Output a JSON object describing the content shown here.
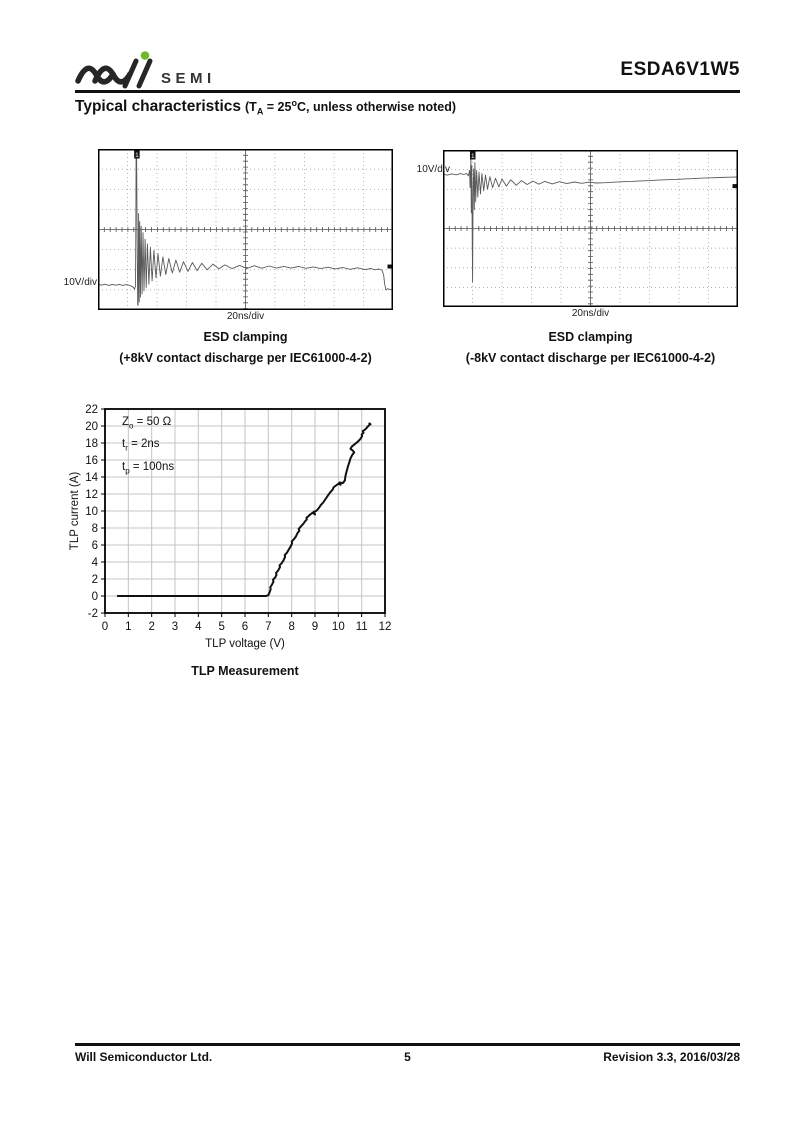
{
  "header": {
    "brand_mark": "Will",
    "brand_text": "SEMI",
    "part_number": "ESDA6V1W5"
  },
  "section_title": {
    "main": "Typical characteristics",
    "cond_pre": "(T",
    "cond_sub": "A",
    "cond_mid": " = 25",
    "cond_sup": "o",
    "cond_post": "C, unless otherwise noted)"
  },
  "figures": {
    "esd_pos": {
      "y_scale": "10V/div",
      "x_scale": "20ns/div",
      "channel_marker": "1",
      "caption_title": "ESD clamping",
      "caption_detail": "(+8kV contact discharge per IEC61000-4-2)"
    },
    "esd_neg": {
      "y_scale": "10V/div",
      "x_scale": "20ns/div",
      "channel_marker": "1",
      "caption_title": "ESD clamping",
      "caption_detail": "(-8kV contact discharge per IEC61000-4-2)"
    },
    "tlp": {
      "ylabel": "TLP current (A)",
      "xlabel": "TLP voltage (V)",
      "caption": "TLP Measurement",
      "annotations": [
        {
          "base": "Z",
          "sub": "o",
          "rest": " = 50 Ω"
        },
        {
          "base": "t",
          "sub": "r",
          "rest": " = 2ns"
        },
        {
          "base": "t",
          "sub": "p",
          "rest": " = 100ns"
        }
      ]
    }
  },
  "chart_data": [
    {
      "id": "esd_pos",
      "type": "line",
      "title": "ESD clamping (+8kV contact discharge per IEC61000-4-2)",
      "x_units": "20ns/div",
      "y_units": "10V/div",
      "grid_divisions": {
        "x": 10,
        "y": 8
      },
      "channel_label": "1",
      "peak_marker_x_pct": 13.1,
      "edge_marker_y_pct": 73,
      "clipped_peak": true,
      "trace_pct": [
        [
          0,
          84
        ],
        [
          1.2,
          84.6
        ],
        [
          2.4,
          84
        ],
        [
          3.6,
          84.7
        ],
        [
          4.8,
          84.1
        ],
        [
          6,
          84.6
        ],
        [
          7.2,
          84.1
        ],
        [
          8.4,
          84.7
        ],
        [
          9.6,
          84.2
        ],
        [
          10.8,
          84.8
        ],
        [
          11.8,
          85.6
        ],
        [
          12.4,
          87
        ],
        [
          12.7,
          85
        ],
        [
          12.8,
          55
        ],
        [
          12.9,
          3
        ],
        [
          13.1,
          2
        ],
        [
          13.3,
          60
        ],
        [
          13.45,
          97
        ],
        [
          13.6,
          97
        ],
        [
          13.75,
          40
        ],
        [
          13.95,
          95
        ],
        [
          14.15,
          45
        ],
        [
          14.4,
          92
        ],
        [
          14.65,
          48
        ],
        [
          14.95,
          90
        ],
        [
          15.25,
          52
        ],
        [
          15.6,
          88
        ],
        [
          15.95,
          56
        ],
        [
          16.35,
          86
        ],
        [
          16.75,
          59
        ],
        [
          17.25,
          84
        ],
        [
          17.75,
          61
        ],
        [
          18.35,
          82
        ],
        [
          18.95,
          63
        ],
        [
          19.65,
          80
        ],
        [
          20.35,
          65
        ],
        [
          21.15,
          79
        ],
        [
          22,
          67
        ],
        [
          23,
          78
        ],
        [
          24,
          68
        ],
        [
          25.2,
          77
        ],
        [
          26.4,
          69
        ],
        [
          27.7,
          76.5
        ],
        [
          29,
          70
        ],
        [
          30.5,
          76
        ],
        [
          32,
          70.5
        ],
        [
          33.6,
          75.5
        ],
        [
          35.2,
          71
        ],
        [
          37,
          75
        ],
        [
          39,
          71.5
        ],
        [
          41,
          74.5
        ],
        [
          43,
          72
        ],
        [
          45.5,
          74.3
        ],
        [
          48,
          72.3
        ],
        [
          50.5,
          74.2
        ],
        [
          53,
          72.5
        ],
        [
          55.5,
          74.1
        ],
        [
          58,
          72.7
        ],
        [
          60.5,
          74
        ],
        [
          63,
          72.9
        ],
        [
          65.5,
          74
        ],
        [
          68,
          73
        ],
        [
          70.5,
          74.1
        ],
        [
          73,
          73.2
        ],
        [
          75.5,
          74.3
        ],
        [
          78,
          73.4
        ],
        [
          80.5,
          74.5
        ],
        [
          83,
          73.6
        ],
        [
          85.5,
          74.7
        ],
        [
          88,
          73.8
        ],
        [
          90.5,
          74.9
        ],
        [
          92.5,
          74.2
        ],
        [
          94,
          75
        ],
        [
          95.3,
          74.5
        ],
        [
          96.2,
          75.2
        ],
        [
          96.8,
          78
        ],
        [
          97.2,
          84
        ],
        [
          97.6,
          87.5
        ],
        [
          98.2,
          86.8
        ],
        [
          99,
          87.3
        ],
        [
          100,
          87.5
        ]
      ]
    },
    {
      "id": "esd_neg",
      "type": "line",
      "title": "ESD clamping (-8kV contact discharge per IEC61000-4-2)",
      "x_units": "20ns/div",
      "y_units": "10V/div",
      "grid_divisions": {
        "x": 10,
        "y": 8
      },
      "channel_label": "1",
      "peak_marker_x_pct": 10,
      "edge_marker_y_pct": 23,
      "clipped_peak": false,
      "trace_pct": [
        [
          0,
          15.5
        ],
        [
          1.5,
          16
        ],
        [
          3,
          15.2
        ],
        [
          4.5,
          15.8
        ],
        [
          6,
          15
        ],
        [
          7,
          15.6
        ],
        [
          8,
          15
        ],
        [
          8.6,
          16.5
        ],
        [
          9,
          13
        ],
        [
          9.2,
          24
        ],
        [
          9.45,
          6
        ],
        [
          9.6,
          40
        ],
        [
          9.75,
          10
        ],
        [
          9.9,
          55
        ],
        [
          10.05,
          84
        ],
        [
          10.2,
          25
        ],
        [
          10.4,
          12
        ],
        [
          10.6,
          38
        ],
        [
          10.8,
          8
        ],
        [
          11.1,
          33
        ],
        [
          11.4,
          13
        ],
        [
          11.8,
          30
        ],
        [
          12.2,
          14
        ],
        [
          12.7,
          28
        ],
        [
          13.2,
          15
        ],
        [
          13.8,
          26
        ],
        [
          14.4,
          16
        ],
        [
          15.1,
          25
        ],
        [
          15.9,
          17
        ],
        [
          16.8,
          24
        ],
        [
          17.8,
          18
        ],
        [
          18.9,
          23.5
        ],
        [
          20,
          18.5
        ],
        [
          21.5,
          23
        ],
        [
          23,
          19
        ],
        [
          24.8,
          22.5
        ],
        [
          26.6,
          19.5
        ],
        [
          28.5,
          22
        ],
        [
          30.5,
          19.8
        ],
        [
          32.5,
          21.8
        ],
        [
          34.5,
          20
        ],
        [
          37,
          21.6
        ],
        [
          39.5,
          20.2
        ],
        [
          42,
          21.4
        ],
        [
          44.5,
          20.4
        ],
        [
          47,
          21.2
        ],
        [
          49.5,
          20.5
        ],
        [
          52,
          21
        ],
        [
          55,
          20.8
        ],
        [
          58,
          20.5
        ],
        [
          61,
          20.2
        ],
        [
          64,
          20
        ],
        [
          67,
          19.7
        ],
        [
          70,
          19.5
        ],
        [
          73,
          19.2
        ],
        [
          76,
          18.9
        ],
        [
          79,
          18.7
        ],
        [
          82,
          18.4
        ],
        [
          85,
          18.2
        ],
        [
          88,
          17.9
        ],
        [
          91,
          17.7
        ],
        [
          94,
          17.5
        ],
        [
          97,
          17.3
        ],
        [
          100,
          17.2
        ]
      ]
    },
    {
      "id": "tlp",
      "type": "line",
      "title": "TLP Measurement",
      "xlabel": "TLP voltage (V)",
      "ylabel": "TLP current (A)",
      "xlim": [
        0,
        12
      ],
      "ylim": [
        -2,
        22
      ],
      "xticks": [
        0,
        1,
        2,
        3,
        4,
        5,
        6,
        7,
        8,
        9,
        10,
        11,
        12
      ],
      "yticks": [
        -2,
        0,
        2,
        4,
        6,
        8,
        10,
        12,
        14,
        16,
        18,
        20,
        22
      ],
      "grid": true,
      "conditions": [
        "Zo = 50 Ω",
        "tr = 2ns",
        "tp = 100ns"
      ],
      "points": [
        [
          0.55,
          0
        ],
        [
          1,
          0
        ],
        [
          1.5,
          0
        ],
        [
          2,
          0
        ],
        [
          2.5,
          0
        ],
        [
          3,
          0
        ],
        [
          3.5,
          0
        ],
        [
          4,
          0
        ],
        [
          4.5,
          0
        ],
        [
          5,
          0
        ],
        [
          5.5,
          0
        ],
        [
          6,
          0
        ],
        [
          6.5,
          0
        ],
        [
          6.9,
          0
        ],
        [
          7.0,
          0.1
        ],
        [
          7.05,
          0.4
        ],
        [
          7.1,
          0.8
        ],
        [
          7.08,
          1.0
        ],
        [
          7.15,
          1.3
        ],
        [
          7.22,
          1.7
        ],
        [
          7.2,
          1.9
        ],
        [
          7.3,
          2.2
        ],
        [
          7.35,
          2.5
        ],
        [
          7.33,
          2.7
        ],
        [
          7.42,
          3.0
        ],
        [
          7.5,
          3.4
        ],
        [
          7.48,
          3.6
        ],
        [
          7.58,
          3.9
        ],
        [
          7.65,
          4.2
        ],
        [
          7.72,
          4.6
        ],
        [
          7.7,
          4.8
        ],
        [
          7.8,
          5.1
        ],
        [
          7.88,
          5.5
        ],
        [
          7.95,
          5.8
        ],
        [
          8.02,
          6.2
        ],
        [
          8.0,
          6.4
        ],
        [
          8.1,
          6.7
        ],
        [
          8.18,
          7.0
        ],
        [
          8.25,
          7.4
        ],
        [
          8.33,
          7.7
        ],
        [
          8.3,
          7.9
        ],
        [
          8.4,
          8.2
        ],
        [
          8.5,
          8.5
        ],
        [
          8.58,
          8.8
        ],
        [
          8.65,
          9.0
        ],
        [
          8.63,
          9.2
        ],
        [
          8.72,
          9.4
        ],
        [
          8.8,
          9.6
        ],
        [
          8.9,
          9.8
        ],
        [
          9.0,
          9.6
        ],
        [
          8.95,
          9.9
        ],
        [
          9.05,
          10.0
        ],
        [
          9.15,
          10.3
        ],
        [
          9.25,
          10.7
        ],
        [
          9.35,
          11.0
        ],
        [
          9.45,
          11.4
        ],
        [
          9.55,
          11.8
        ],
        [
          9.65,
          12.2
        ],
        [
          9.75,
          12.5
        ],
        [
          9.8,
          12.8
        ],
        [
          9.9,
          13.0
        ],
        [
          10.0,
          13.2
        ],
        [
          10.1,
          13.1
        ],
        [
          10.05,
          13.35
        ],
        [
          10.2,
          13.3
        ],
        [
          10.28,
          13.6
        ],
        [
          10.3,
          14.0
        ],
        [
          10.33,
          14.4
        ],
        [
          10.38,
          14.9
        ],
        [
          10.42,
          15.3
        ],
        [
          10.48,
          15.8
        ],
        [
          10.52,
          16.2
        ],
        [
          10.6,
          16.6
        ],
        [
          10.68,
          16.9
        ],
        [
          10.62,
          17.1
        ],
        [
          10.52,
          17.3
        ],
        [
          10.58,
          17.6
        ],
        [
          10.72,
          17.9
        ],
        [
          10.85,
          18.2
        ],
        [
          10.95,
          18.5
        ],
        [
          11.02,
          18.8
        ],
        [
          11.0,
          19.0
        ],
        [
          11.08,
          19.2
        ],
        [
          11.05,
          19.4
        ],
        [
          11.15,
          19.6
        ],
        [
          11.25,
          19.9
        ],
        [
          11.32,
          20.1
        ],
        [
          11.38,
          20.2
        ],
        [
          11.33,
          20.3
        ]
      ]
    }
  ],
  "footer": {
    "company": "Will Semiconductor Ltd.",
    "page_number": "5",
    "revision": "Revision 3.3, 2016/03/28"
  }
}
